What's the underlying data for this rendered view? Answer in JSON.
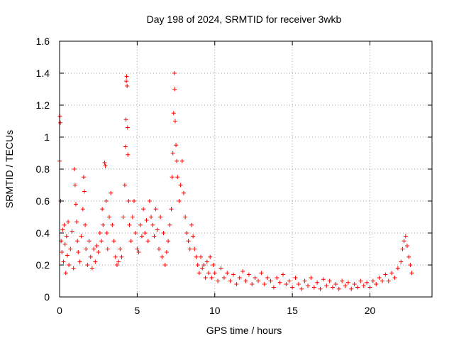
{
  "chart_data": {
    "type": "scatter",
    "title": "Day 198 of 2024, SRMTID for receiver 3wkb",
    "xlabel": "GPS time / hours",
    "ylabel": "SRMTID / TECUs",
    "xlim": [
      0,
      24
    ],
    "ylim": [
      0,
      1.6
    ],
    "grid": true,
    "marker": "+",
    "x_ticks": [
      0,
      5,
      10,
      15,
      20
    ],
    "y_ticks": [
      0,
      0.2,
      0.4,
      0.6,
      0.8,
      1,
      1.2,
      1.4,
      1.6
    ],
    "x_tick_labels": [
      "0",
      "5",
      "10",
      "15",
      "20"
    ],
    "y_tick_labels": [
      "0",
      "0.2",
      "0.4",
      "0.6",
      "0.8",
      "1",
      "1.2",
      "1.4",
      "1.6"
    ],
    "series": [
      {
        "name": "SRMTID",
        "color": "#ff0000",
        "points": [
          [
            0.0,
            0.85
          ],
          [
            0.02,
            1.13
          ],
          [
            0.05,
            1.09
          ],
          [
            0.07,
            0.6
          ],
          [
            0.1,
            0.35
          ],
          [
            0.15,
            0.28
          ],
          [
            0.2,
            0.42
          ],
          [
            0.25,
            0.22
          ],
          [
            0.3,
            0.45
          ],
          [
            0.35,
            0.33
          ],
          [
            0.4,
            0.15
          ],
          [
            0.45,
            0.38
          ],
          [
            0.5,
            0.26
          ],
          [
            0.55,
            0.47
          ],
          [
            0.6,
            0.2
          ],
          [
            0.7,
            0.3
          ],
          [
            0.8,
            0.41
          ],
          [
            0.9,
            0.18
          ],
          [
            0.95,
            0.8
          ],
          [
            1.0,
            0.7
          ],
          [
            1.05,
            0.58
          ],
          [
            1.1,
            0.47
          ],
          [
            1.15,
            0.35
          ],
          [
            1.2,
            0.28
          ],
          [
            1.3,
            0.22
          ],
          [
            1.4,
            0.38
          ],
          [
            1.5,
            0.55
          ],
          [
            1.55,
            0.75
          ],
          [
            1.6,
            0.66
          ],
          [
            1.65,
            0.45
          ],
          [
            1.7,
            0.3
          ],
          [
            1.8,
            0.2
          ],
          [
            1.9,
            0.35
          ],
          [
            2.0,
            0.25
          ],
          [
            2.1,
            0.18
          ],
          [
            2.2,
            0.3
          ],
          [
            2.3,
            0.22
          ],
          [
            2.4,
            0.32
          ],
          [
            2.5,
            0.28
          ],
          [
            2.6,
            0.4
          ],
          [
            2.7,
            0.35
          ],
          [
            2.75,
            0.55
          ],
          [
            2.8,
            0.45
          ],
          [
            2.9,
            0.84
          ],
          [
            2.95,
            0.82
          ],
          [
            3.0,
            0.6
          ],
          [
            3.05,
            0.4
          ],
          [
            3.1,
            0.3
          ],
          [
            3.2,
            0.5
          ],
          [
            3.3,
            0.65
          ],
          [
            3.4,
            0.45
          ],
          [
            3.5,
            0.35
          ],
          [
            3.6,
            0.25
          ],
          [
            3.7,
            0.2
          ],
          [
            3.8,
            0.22
          ],
          [
            3.9,
            0.3
          ],
          [
            4.0,
            0.25
          ],
          [
            4.1,
            0.5
          ],
          [
            4.2,
            0.7
          ],
          [
            4.25,
            0.94
          ],
          [
            4.28,
            1.11
          ],
          [
            4.3,
            1.35
          ],
          [
            4.32,
            1.38
          ],
          [
            4.35,
            1.32
          ],
          [
            4.38,
            1.06
          ],
          [
            4.4,
            0.89
          ],
          [
            4.45,
            0.6
          ],
          [
            4.5,
            0.45
          ],
          [
            4.6,
            0.35
          ],
          [
            4.7,
            0.5
          ],
          [
            4.8,
            0.6
          ],
          [
            4.9,
            0.4
          ],
          [
            5.0,
            0.3
          ],
          [
            5.1,
            0.28
          ],
          [
            5.2,
            0.45
          ],
          [
            5.3,
            0.38
          ],
          [
            5.4,
            0.55
          ],
          [
            5.5,
            0.4
          ],
          [
            5.6,
            0.48
          ],
          [
            5.7,
            0.35
          ],
          [
            5.8,
            0.6
          ],
          [
            5.9,
            0.5
          ],
          [
            6.0,
            0.45
          ],
          [
            6.1,
            0.38
          ],
          [
            6.2,
            0.55
          ],
          [
            6.3,
            0.42
          ],
          [
            6.4,
            0.3
          ],
          [
            6.5,
            0.5
          ],
          [
            6.6,
            0.25
          ],
          [
            6.7,
            0.4
          ],
          [
            6.8,
            0.2
          ],
          [
            6.9,
            0.28
          ],
          [
            7.0,
            0.35
          ],
          [
            7.1,
            0.45
          ],
          [
            7.2,
            0.55
          ],
          [
            7.25,
            0.75
          ],
          [
            7.3,
            0.9
          ],
          [
            7.35,
            1.15
          ],
          [
            7.4,
            1.4
          ],
          [
            7.42,
            1.3
          ],
          [
            7.45,
            1.1
          ],
          [
            7.5,
            0.95
          ],
          [
            7.55,
            0.85
          ],
          [
            7.6,
            0.75
          ],
          [
            7.7,
            0.6
          ],
          [
            7.8,
            0.7
          ],
          [
            7.9,
            0.85
          ],
          [
            8.0,
            0.65
          ],
          [
            8.1,
            0.5
          ],
          [
            8.2,
            0.4
          ],
          [
            8.3,
            0.35
          ],
          [
            8.4,
            0.3
          ],
          [
            8.5,
            0.45
          ],
          [
            8.6,
            0.38
          ],
          [
            8.7,
            0.3
          ],
          [
            8.8,
            0.25
          ],
          [
            8.9,
            0.2
          ],
          [
            9.0,
            0.15
          ],
          [
            9.1,
            0.25
          ],
          [
            9.2,
            0.18
          ],
          [
            9.3,
            0.2
          ],
          [
            9.4,
            0.12
          ],
          [
            9.5,
            0.22
          ],
          [
            9.6,
            0.15
          ],
          [
            9.7,
            0.25
          ],
          [
            9.8,
            0.12
          ],
          [
            9.9,
            0.2
          ],
          [
            10.0,
            0.15
          ],
          [
            10.2,
            0.1
          ],
          [
            10.4,
            0.18
          ],
          [
            10.6,
            0.12
          ],
          [
            10.8,
            0.15
          ],
          [
            11.0,
            0.1
          ],
          [
            11.2,
            0.14
          ],
          [
            11.4,
            0.08
          ],
          [
            11.6,
            0.12
          ],
          [
            11.8,
            0.16
          ],
          [
            12.0,
            0.1
          ],
          [
            12.2,
            0.14
          ],
          [
            12.4,
            0.08
          ],
          [
            12.6,
            0.12
          ],
          [
            12.8,
            0.1
          ],
          [
            13.0,
            0.15
          ],
          [
            13.2,
            0.08
          ],
          [
            13.4,
            0.12
          ],
          [
            13.6,
            0.1
          ],
          [
            13.8,
            0.06
          ],
          [
            14.0,
            0.12
          ],
          [
            14.2,
            0.09
          ],
          [
            14.4,
            0.14
          ],
          [
            14.6,
            0.08
          ],
          [
            14.8,
            0.1
          ],
          [
            15.0,
            0.06
          ],
          [
            15.2,
            0.12
          ],
          [
            15.4,
            0.08
          ],
          [
            15.6,
            0.05
          ],
          [
            15.8,
            0.1
          ],
          [
            16.0,
            0.07
          ],
          [
            16.2,
            0.12
          ],
          [
            16.4,
            0.06
          ],
          [
            16.6,
            0.09
          ],
          [
            16.8,
            0.05
          ],
          [
            17.0,
            0.11
          ],
          [
            17.2,
            0.07
          ],
          [
            17.4,
            0.1
          ],
          [
            17.6,
            0.06
          ],
          [
            17.8,
            0.08
          ],
          [
            18.0,
            0.05
          ],
          [
            18.2,
            0.1
          ],
          [
            18.4,
            0.07
          ],
          [
            18.6,
            0.09
          ],
          [
            18.8,
            0.05
          ],
          [
            19.0,
            0.08
          ],
          [
            19.2,
            0.06
          ],
          [
            19.4,
            0.1
          ],
          [
            19.6,
            0.07
          ],
          [
            19.8,
            0.09
          ],
          [
            20.0,
            0.06
          ],
          [
            20.2,
            0.1
          ],
          [
            20.4,
            0.08
          ],
          [
            20.6,
            0.12
          ],
          [
            20.8,
            0.1
          ],
          [
            21.0,
            0.14
          ],
          [
            21.2,
            0.1
          ],
          [
            21.4,
            0.15
          ],
          [
            21.6,
            0.12
          ],
          [
            21.8,
            0.18
          ],
          [
            22.0,
            0.22
          ],
          [
            22.1,
            0.3
          ],
          [
            22.2,
            0.35
          ],
          [
            22.3,
            0.38
          ],
          [
            22.4,
            0.32
          ],
          [
            22.5,
            0.25
          ],
          [
            22.6,
            0.2
          ],
          [
            22.7,
            0.15
          ]
        ]
      }
    ]
  }
}
